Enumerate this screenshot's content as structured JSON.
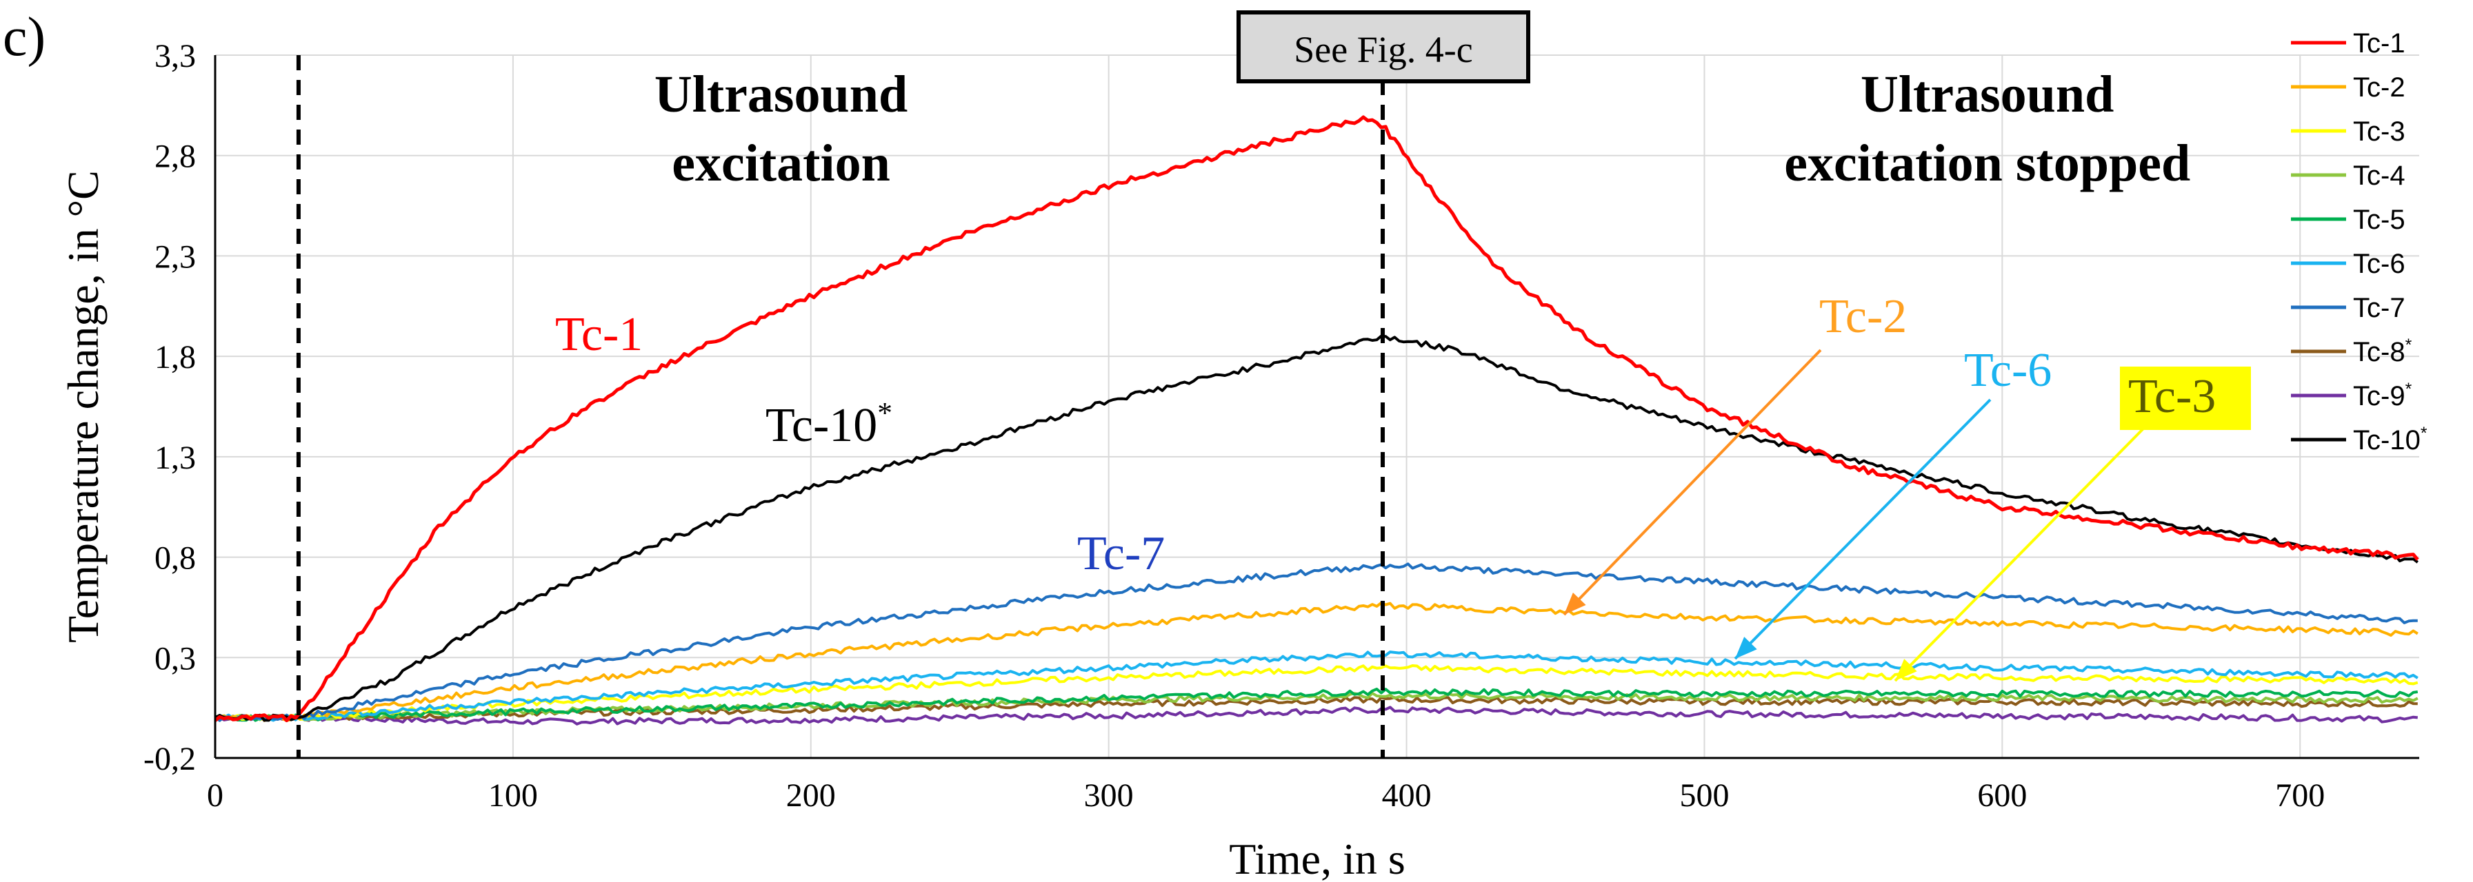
{
  "chart_data": {
    "type": "line",
    "panel_label": "c)",
    "title": "",
    "xlabel": "Time, in s",
    "ylabel": "Temperature change, in °C",
    "xlim": [
      0,
      740
    ],
    "ylim": [
      -0.2,
      3.3
    ],
    "xticks": [
      0,
      100,
      200,
      300,
      400,
      500,
      600,
      700
    ],
    "yticks": [
      -0.2,
      0.3,
      0.8,
      1.3,
      1.8,
      2.3,
      2.8,
      3.3
    ],
    "ytick_labels": [
      "-0,2",
      "0,3",
      "0,8",
      "1,3",
      "1,8",
      "2,3",
      "2,8",
      "3,3"
    ],
    "grid": true,
    "legend_position": "right",
    "vlines": [
      28,
      392
    ],
    "annotations": {
      "excitation": [
        "Ultrasound",
        "excitation"
      ],
      "stopped": [
        "Ultrasound",
        "excitation stopped"
      ],
      "see_fig": "See Fig. 4-c"
    },
    "series": [
      {
        "name": "Tc-1",
        "legend_sup": "",
        "color": "#ff0000",
        "x": [
          0,
          28,
          50,
          75,
          100,
          125,
          150,
          200,
          250,
          300,
          350,
          385,
          392,
          410,
          430,
          460,
          500,
          550,
          600,
          650,
          700,
          740
        ],
        "y": [
          0,
          0,
          0.45,
          0.95,
          1.3,
          1.55,
          1.75,
          2.1,
          2.4,
          2.65,
          2.85,
          2.98,
          2.95,
          2.6,
          2.25,
          1.9,
          1.55,
          1.25,
          1.05,
          0.95,
          0.85,
          0.8
        ]
      },
      {
        "name": "Tc-2",
        "legend_sup": "",
        "color": "#ffb000",
        "x": [
          0,
          28,
          100,
          200,
          300,
          392,
          500,
          600,
          700,
          740
        ],
        "y": [
          0,
          0,
          0.15,
          0.32,
          0.46,
          0.56,
          0.5,
          0.47,
          0.44,
          0.42
        ]
      },
      {
        "name": "Tc-3",
        "legend_sup": "",
        "color": "#ffff00",
        "x": [
          0,
          28,
          100,
          200,
          300,
          392,
          500,
          600,
          700,
          740
        ],
        "y": [
          0,
          0,
          0.07,
          0.14,
          0.2,
          0.25,
          0.22,
          0.2,
          0.19,
          0.18
        ]
      },
      {
        "name": "Tc-4",
        "legend_sup": "",
        "color": "#8dc63f",
        "x": [
          0,
          28,
          100,
          200,
          300,
          392,
          500,
          600,
          700,
          740
        ],
        "y": [
          0,
          0,
          0.03,
          0.06,
          0.09,
          0.11,
          0.1,
          0.1,
          0.09,
          0.09
        ]
      },
      {
        "name": "Tc-5",
        "legend_sup": "",
        "color": "#00b050",
        "x": [
          0,
          28,
          100,
          200,
          300,
          392,
          500,
          600,
          700,
          740
        ],
        "y": [
          0,
          0,
          0.03,
          0.06,
          0.1,
          0.13,
          0.12,
          0.12,
          0.12,
          0.12
        ]
      },
      {
        "name": "Tc-6",
        "legend_sup": "",
        "color": "#1ab3f0",
        "x": [
          0,
          28,
          100,
          200,
          300,
          392,
          500,
          600,
          700,
          740
        ],
        "y": [
          0,
          0,
          0.08,
          0.17,
          0.25,
          0.32,
          0.28,
          0.25,
          0.22,
          0.21
        ]
      },
      {
        "name": "Tc-7",
        "legend_sup": "",
        "color": "#1f6fbf",
        "x": [
          0,
          28,
          100,
          200,
          300,
          392,
          500,
          600,
          700,
          740
        ],
        "y": [
          0,
          0,
          0.22,
          0.45,
          0.63,
          0.76,
          0.68,
          0.6,
          0.52,
          0.48
        ]
      },
      {
        "name": "Tc-8",
        "legend_sup": "*",
        "color": "#8b5a1a",
        "x": [
          0,
          28,
          100,
          200,
          300,
          392,
          500,
          600,
          700,
          740
        ],
        "y": [
          0,
          0,
          0.02,
          0.04,
          0.07,
          0.09,
          0.08,
          0.08,
          0.07,
          0.07
        ]
      },
      {
        "name": "Tc-9",
        "legend_sup": "*",
        "color": "#7030a0",
        "x": [
          0,
          28,
          100,
          200,
          300,
          392,
          500,
          600,
          700,
          740
        ],
        "y": [
          0,
          0,
          -0.02,
          -0.01,
          0.01,
          0.04,
          0.02,
          0.01,
          0.0,
          -0.01
        ]
      },
      {
        "name": "Tc-10",
        "legend_sup": "*",
        "color": "#000000",
        "x": [
          0,
          28,
          60,
          100,
          150,
          200,
          250,
          300,
          350,
          392,
          420,
          450,
          500,
          550,
          600,
          650,
          700,
          740
        ],
        "y": [
          0,
          0,
          0.2,
          0.55,
          0.88,
          1.15,
          1.35,
          1.58,
          1.75,
          1.9,
          1.82,
          1.65,
          1.45,
          1.28,
          1.12,
          0.98,
          0.86,
          0.78
        ]
      }
    ],
    "curve_labels": [
      {
        "text": "Tc-1",
        "sup": "",
        "color": "#ff0000"
      },
      {
        "text": "Tc-10",
        "sup": "*",
        "color": "#000000"
      },
      {
        "text": "Tc-7",
        "sup": "",
        "color": "#1f3fbf"
      },
      {
        "text": "Tc-2",
        "sup": "",
        "color": "#ffa020"
      },
      {
        "text": "Tc-6",
        "sup": "",
        "color": "#1ab3f0"
      },
      {
        "text": "Tc-3",
        "sup": "",
        "color": "#5a5a00",
        "highlight": "#ffff00"
      }
    ]
  }
}
